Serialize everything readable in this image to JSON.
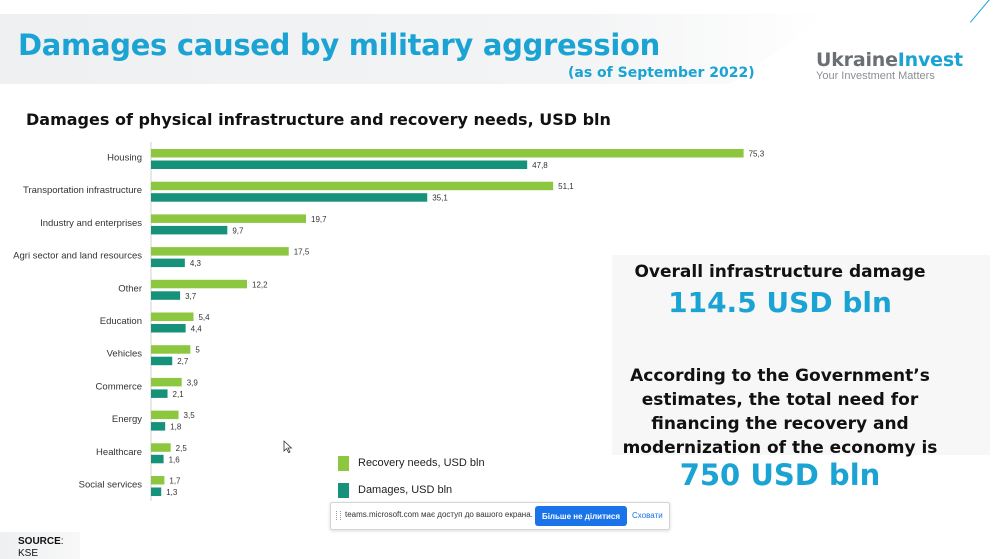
{
  "header": {
    "title": "Damages caused by military aggression",
    "subtitle": "(as of September 2022)"
  },
  "logo": {
    "part1": "Ukraine",
    "part2": "Invest",
    "tagline": "Your Investment Matters"
  },
  "colors": {
    "accent": "#1aa3d3",
    "recovery": "#8dc63f",
    "damages": "#16917a"
  },
  "chart_data": {
    "type": "bar",
    "orientation": "horizontal",
    "title": "Damages of physical infrastructure and recovery needs, USD bln",
    "categories": [
      "Housing",
      "Transportation infrastructure",
      "Industry and enterprises",
      "Agri sector and land resources",
      "Other",
      "Education",
      "Vehicles",
      "Commerce",
      "Energy",
      "Healthcare",
      "Social services"
    ],
    "series": [
      {
        "name": "Recovery needs, USD bln",
        "color": "#8dc63f",
        "values": [
          75.3,
          51.1,
          19.7,
          17.5,
          12.2,
          5.4,
          5,
          3.9,
          3.5,
          2.5,
          1.7
        ],
        "labels": [
          "75,3",
          "51,1",
          "19,7",
          "17,5",
          "12,2",
          "5,4",
          "5",
          "3,9",
          "3,5",
          "2,5",
          "1,7"
        ]
      },
      {
        "name": "Damages, USD bln",
        "color": "#16917a",
        "values": [
          47.8,
          35.1,
          9.7,
          4.3,
          3.7,
          4.4,
          2.7,
          2.1,
          1.8,
          1.6,
          1.3
        ],
        "labels": [
          "47,8",
          "35,1",
          "9,7",
          "4,3",
          "3,7",
          "4,4",
          "2,7",
          "2,1",
          "1,8",
          "1,6",
          "1,3"
        ]
      }
    ],
    "legend_position": "bottom",
    "grid": false
  },
  "stats": {
    "overall_label": "Overall infrastructure damage",
    "overall_value": "114.5 USD bln",
    "gov_lines": [
      "According to the Government’s",
      "estimates, the total need for",
      "financing the recovery and",
      "modernization of the economy is"
    ],
    "gov_value": "750 USD bln"
  },
  "source": {
    "label": "SOURCE",
    "colon": ":",
    "value": "KSE"
  },
  "share_bar": {
    "text": "teams.microsoft.com має доступ до вашого екрана.",
    "stop_label": "Більше не ділитися",
    "hide_label": "Сховати"
  }
}
